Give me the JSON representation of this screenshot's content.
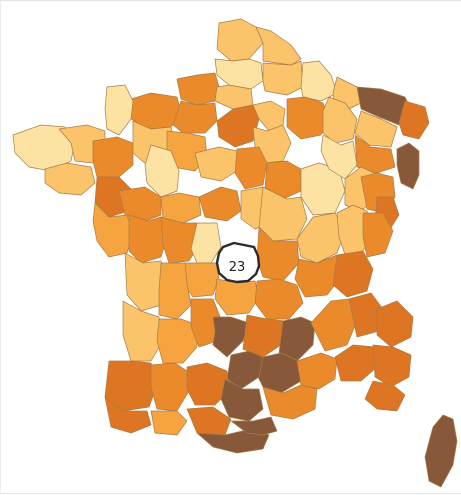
{
  "map": {
    "selected_department": {
      "code": "23"
    },
    "colors": {
      "very_light": "#fde3a3",
      "light": "#fbc46a",
      "medium": "#f6a43f",
      "dark": "#eb8a2b",
      "darker": "#dd7522",
      "brown": "#87593a",
      "border": "#a97c45"
    }
  }
}
